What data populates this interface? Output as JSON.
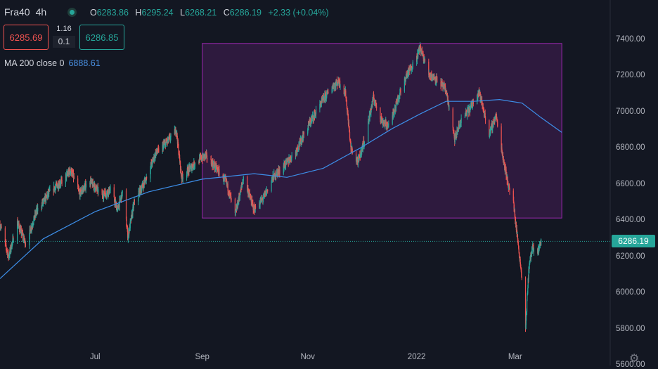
{
  "symbol": "Fra40",
  "timeframe": "4h",
  "ohlc": {
    "o_key": "O",
    "o": "6283.86",
    "h_key": "H",
    "h": "6295.24",
    "l_key": "L",
    "l": "6268.21",
    "c_key": "C",
    "c": "6286.19",
    "change": "+2.33 (+0.04%)"
  },
  "trade": {
    "sell": "6285.69",
    "spread": "1.16",
    "lot": "0.1",
    "buy": "6286.85"
  },
  "indicator": {
    "label": "MA 200 close 0",
    "value": "6888.61"
  },
  "current_price": "6286.19",
  "colors": {
    "up": "#26a69a",
    "down": "#ef5350",
    "ma": "#3d8ee8",
    "rectangle": "#9c27b0",
    "background": "#131722"
  },
  "settings_icon": "gear-icon",
  "chart_data": {
    "type": "candlestick",
    "y_ticks": [
      "7400.00",
      "7200.00",
      "7000.00",
      "6800.00",
      "6600.00",
      "6400.00",
      "6200.00",
      "6000.00",
      "5800.00",
      "5600.00"
    ],
    "ylim": [
      5600,
      7620
    ],
    "x_ticks": [
      "Jul",
      "Sep",
      "Nov",
      "2022",
      "Mar"
    ],
    "x_tick_dates": [
      "2021-07-01",
      "2021-09-01",
      "2021-11-01",
      "2022-01-03",
      "2022-03-01"
    ],
    "xlim": [
      "2021-05-07",
      "2022-04-25"
    ],
    "price_path": [
      [
        "2021-05-07",
        6380
      ],
      [
        "2021-05-12",
        6200
      ],
      [
        "2021-05-17",
        6390
      ],
      [
        "2021-05-22",
        6270
      ],
      [
        "2021-05-28",
        6450
      ],
      [
        "2021-06-05",
        6560
      ],
      [
        "2021-06-12",
        6620
      ],
      [
        "2021-06-17",
        6680
      ],
      [
        "2021-06-22",
        6550
      ],
      [
        "2021-06-28",
        6620
      ],
      [
        "2021-07-05",
        6540
      ],
      [
        "2021-07-10",
        6570
      ],
      [
        "2021-07-14",
        6460
      ],
      [
        "2021-07-17",
        6560
      ],
      [
        "2021-07-20",
        6310
      ],
      [
        "2021-07-24",
        6520
      ],
      [
        "2021-07-29",
        6600
      ],
      [
        "2021-08-05",
        6770
      ],
      [
        "2021-08-12",
        6840
      ],
      [
        "2021-08-17",
        6900
      ],
      [
        "2021-08-20",
        6640
      ],
      [
        "2021-08-24",
        6680
      ],
      [
        "2021-08-29",
        6730
      ],
      [
        "2021-09-03",
        6760
      ],
      [
        "2021-09-10",
        6680
      ],
      [
        "2021-09-15",
        6610
      ],
      [
        "2021-09-20",
        6430
      ],
      [
        "2021-09-25",
        6640
      ],
      [
        "2021-10-01",
        6460
      ],
      [
        "2021-10-06",
        6520
      ],
      [
        "2021-10-12",
        6640
      ],
      [
        "2021-10-18",
        6700
      ],
      [
        "2021-10-25",
        6780
      ],
      [
        "2021-11-01",
        6920
      ],
      [
        "2021-11-08",
        7040
      ],
      [
        "2021-11-15",
        7140
      ],
      [
        "2021-11-19",
        7170
      ],
      [
        "2021-11-23",
        7100
      ],
      [
        "2021-11-26",
        6800
      ],
      [
        "2021-11-30",
        6720
      ],
      [
        "2021-12-04",
        6850
      ],
      [
        "2021-12-09",
        7080
      ],
      [
        "2021-12-14",
        6950
      ],
      [
        "2021-12-18",
        6920
      ],
      [
        "2021-12-22",
        7040
      ],
      [
        "2021-12-28",
        7200
      ],
      [
        "2022-01-03",
        7300
      ],
      [
        "2022-01-05",
        7360
      ],
      [
        "2022-01-10",
        7210
      ],
      [
        "2022-01-15",
        7180
      ],
      [
        "2022-01-20",
        7120
      ],
      [
        "2022-01-25",
        6850
      ],
      [
        "2022-01-29",
        6960
      ],
      [
        "2022-02-03",
        7020
      ],
      [
        "2022-02-08",
        7120
      ],
      [
        "2022-02-14",
        6880
      ],
      [
        "2022-02-18",
        6980
      ],
      [
        "2022-02-22",
        6750
      ],
      [
        "2022-02-25",
        6600
      ],
      [
        "2022-02-28",
        6500
      ],
      [
        "2022-03-03",
        6250
      ],
      [
        "2022-03-05",
        6080
      ],
      [
        "2022-03-07",
        5800
      ],
      [
        "2022-03-09",
        6150
      ],
      [
        "2022-03-11",
        6250
      ],
      [
        "2022-03-13",
        6200
      ],
      [
        "2022-03-16",
        6286
      ]
    ],
    "ma_path": [
      [
        "2021-05-07",
        6080
      ],
      [
        "2021-06-01",
        6300
      ],
      [
        "2021-07-01",
        6450
      ],
      [
        "2021-08-01",
        6560
      ],
      [
        "2021-09-01",
        6630
      ],
      [
        "2021-10-01",
        6660
      ],
      [
        "2021-10-20",
        6640
      ],
      [
        "2021-11-10",
        6690
      ],
      [
        "2021-12-01",
        6800
      ],
      [
        "2021-12-20",
        6910
      ],
      [
        "2022-01-05",
        6990
      ],
      [
        "2022-01-20",
        7060
      ],
      [
        "2022-02-05",
        7060
      ],
      [
        "2022-02-20",
        7070
      ],
      [
        "2022-03-05",
        7050
      ],
      [
        "2022-03-16",
        6970
      ],
      [
        "2022-03-28",
        6888
      ]
    ],
    "rectangle": {
      "start": "2021-09-01",
      "end": "2022-03-28",
      "top": 7380,
      "bottom": 6415
    }
  }
}
